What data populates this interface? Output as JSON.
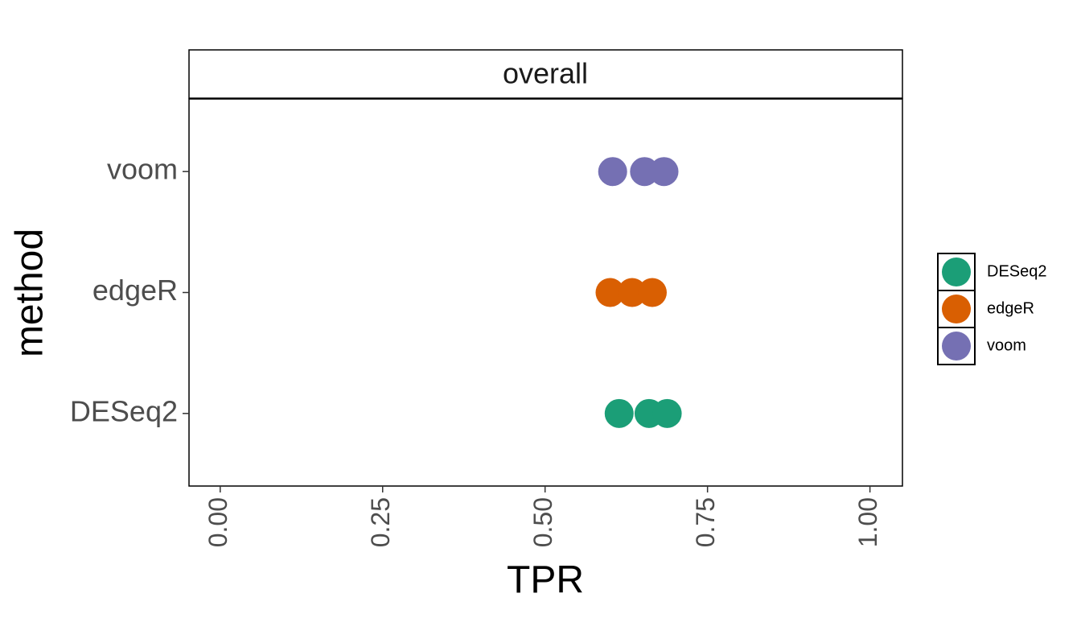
{
  "chart_data": {
    "type": "scatter",
    "panel_title": "overall",
    "x_label": "TPR",
    "y_label": "method",
    "categories": [
      "DESeq2",
      "edgeR",
      "voom"
    ],
    "series": [
      {
        "name": "DESeq2",
        "color": "#1b9e77",
        "values": [
          0.614,
          0.66,
          0.688
        ]
      },
      {
        "name": "edgeR",
        "color": "#d95f02",
        "values": [
          0.6,
          0.634,
          0.665
        ]
      },
      {
        "name": "voom",
        "color": "#7570b3",
        "values": [
          0.604,
          0.653,
          0.683
        ]
      }
    ],
    "xlim": [
      -0.048,
      1.05
    ],
    "xticks": [
      {
        "value": 0,
        "label": "0.00"
      },
      {
        "value": 0.25,
        "label": "0.25"
      },
      {
        "value": 0.5,
        "label": "0.50"
      },
      {
        "value": 0.75,
        "label": "0.75"
      },
      {
        "value": 1,
        "label": "1.00"
      }
    ],
    "grid": false,
    "legend": "right"
  }
}
